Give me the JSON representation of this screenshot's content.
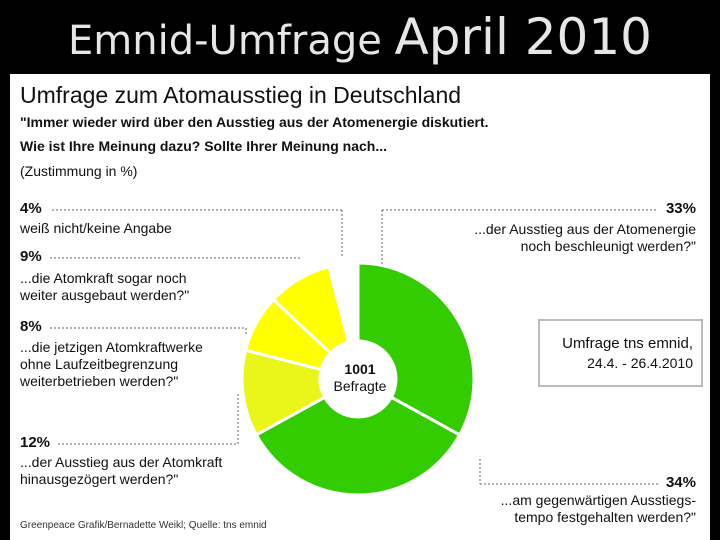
{
  "slide": {
    "title_main": "Emnid-Umfrage",
    "title_tail": "April 2010"
  },
  "panel": {
    "heading": "Umfrage zum Atomausstieg in Deutschland",
    "question_line1": "\"Immer wieder wird über den Ausstieg aus der Atomenergie diskutiert.",
    "question_line2": "Wie ist Ihre Meinung dazu? Sollte Ihrer Meinung nach...",
    "note": "(Zustimmung in %)",
    "center_count": "1001",
    "center_label": "Befragte",
    "source_line1": "Umfrage tns emnid,",
    "source_line2": "24.4. - 26.4.2010",
    "footer": "Greenpeace Grafik/Bernadette Weikl; Quelle: tns emnid"
  },
  "chart_data": {
    "type": "pie",
    "donut": true,
    "unit": "%",
    "slices": [
      {
        "value": 33,
        "label": "33%",
        "text": "...der Ausstieg aus der Atomenergie\nnoch beschleunigt werden?\"",
        "color": "#33cc00"
      },
      {
        "value": 34,
        "label": "34%",
        "text": "...am gegenwärtigen Ausstiegs-\ntempo festgehalten werden?\"",
        "color": "#33cc00"
      },
      {
        "value": 12,
        "label": "12%",
        "text": "...der Ausstieg aus der Atomkraft\nhinausgezögert werden?\"",
        "color": "#eaf51a"
      },
      {
        "value": 8,
        "label": "8%",
        "text": "...die jetzigen Atomkraftwerke\nohne Laufzeitbegrenzung\nweiterbetrieben werden?\"",
        "color": "#ffff00"
      },
      {
        "value": 9,
        "label": "9%",
        "text": "...die Atomkraft sogar noch\nweiter ausgebaut werden?\"",
        "color": "#ffff00"
      },
      {
        "value": 4,
        "label": "4%",
        "text": "weiß nicht/keine Angabe",
        "color": "#ffffff"
      }
    ]
  }
}
